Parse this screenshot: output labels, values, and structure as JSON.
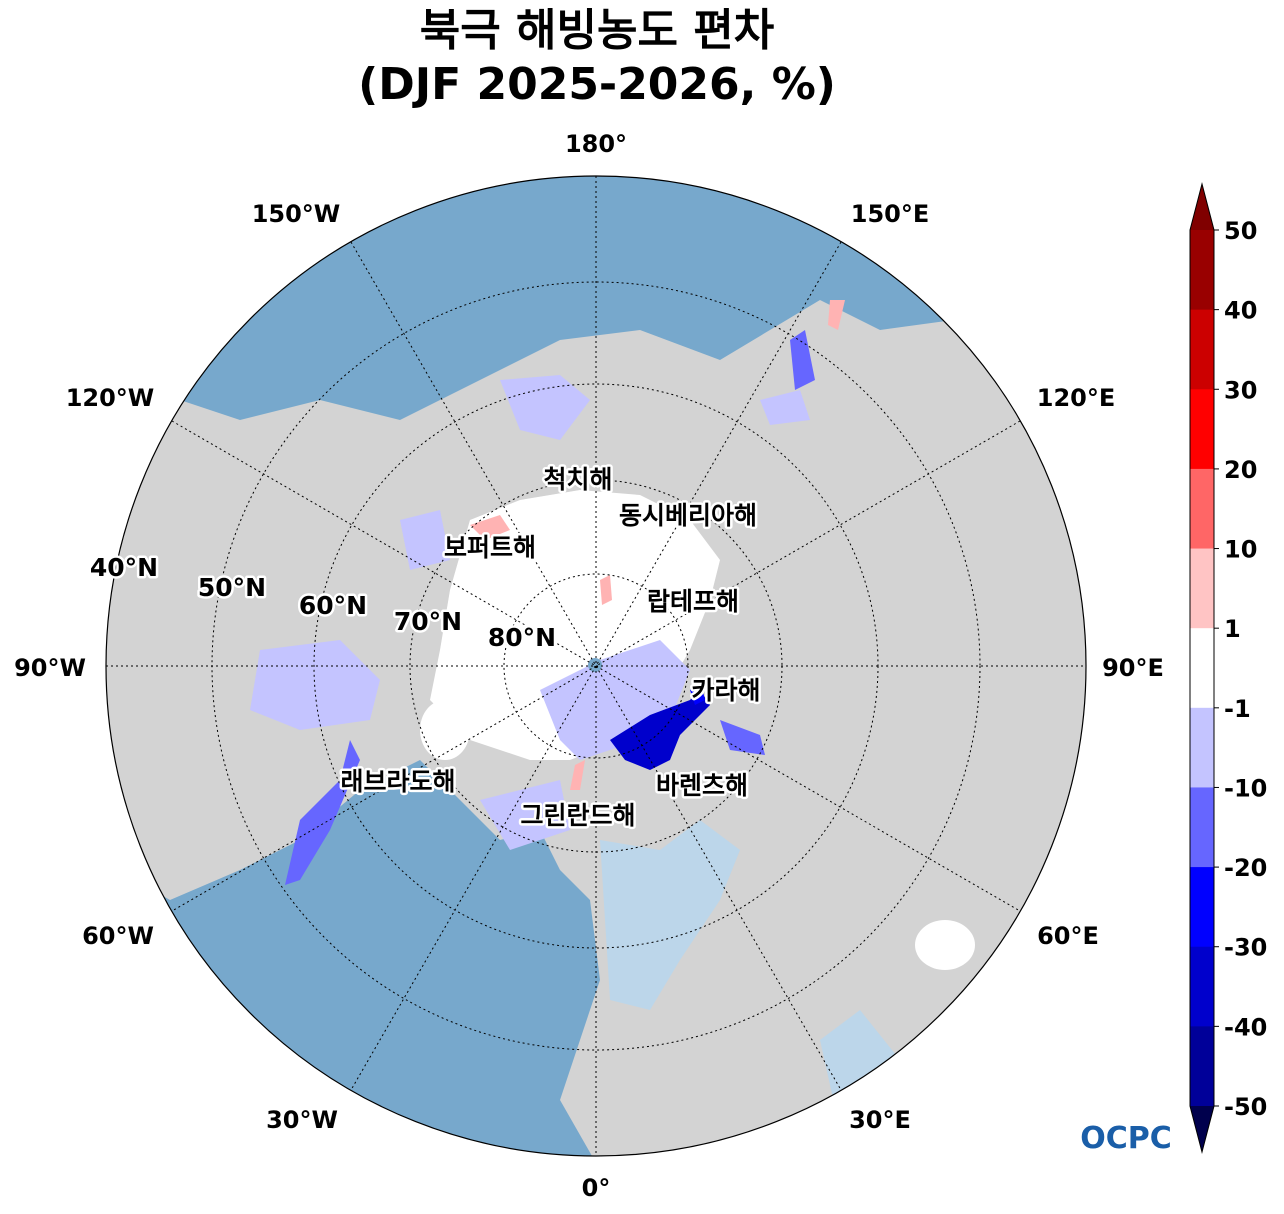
{
  "title": {
    "line1": "북극 해빙농도 편차",
    "line2": "(DJF 2025-2026, %)"
  },
  "map": {
    "projection": "north-polar-stereographic",
    "longitude_labels": [
      "180°",
      "150°E",
      "120°E",
      "90°E",
      "60°E",
      "30°E",
      "0°",
      "30°W",
      "60°W",
      "90°W",
      "120°W",
      "150°W"
    ],
    "latitude_labels": [
      "40°N",
      "50°N",
      "60°N",
      "70°N",
      "80°N"
    ],
    "sea_labels": [
      "척치해",
      "동시베리아해",
      "보퍼트해",
      "랍테프해",
      "카라해",
      "래브라도해",
      "바렌츠해",
      "그린란드해"
    ],
    "colors": {
      "land": "#d3d3d3",
      "ocean": "#77a8cc",
      "no_anomaly": "#ffffff"
    }
  },
  "colorbar": {
    "levels": [
      -50,
      -40,
      -30,
      -20,
      -10,
      -1,
      1,
      10,
      20,
      30,
      40,
      50
    ],
    "tick_labels": [
      "50",
      "40",
      "30",
      "20",
      "10",
      "1",
      "-1",
      "-10",
      "-20",
      "-30",
      "-40",
      "-50"
    ],
    "colors_top_to_bottom": [
      "#990000",
      "#cc0000",
      "#ff0000",
      "#ff6666",
      "#ffc4c4",
      "#ffffff",
      "#c4c4ff",
      "#6666ff",
      "#0000ff",
      "#0000cc",
      "#000099"
    ],
    "extend_max_color": "#800000",
    "extend_min_color": "#00004d"
  },
  "logo": {
    "text": "OCPC"
  }
}
